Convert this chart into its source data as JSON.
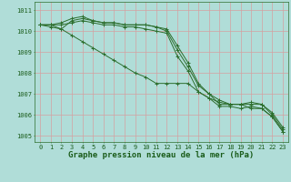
{
  "title": "Graphe pression niveau de la mer (hPa)",
  "bg_color": "#b0ddd8",
  "grid_color": "#d4a0a0",
  "line_color": "#2d6e2d",
  "x_values": [
    0,
    1,
    2,
    3,
    4,
    5,
    6,
    7,
    8,
    9,
    10,
    11,
    12,
    13,
    14,
    15,
    16,
    17,
    18,
    19,
    20,
    21,
    22,
    23
  ],
  "lines": [
    [
      1010.3,
      1010.3,
      1010.1,
      1010.5,
      1010.6,
      1010.5,
      1010.4,
      1010.4,
      1010.3,
      1010.3,
      1010.3,
      1010.2,
      1010.1,
      1009.3,
      1008.5,
      1007.5,
      1007.0,
      1006.5,
      1006.5,
      1006.5,
      1006.5,
      1006.5,
      1006.0,
      1005.3
    ],
    [
      1010.3,
      1010.3,
      1010.4,
      1010.6,
      1010.7,
      1010.5,
      1010.4,
      1010.4,
      1010.3,
      1010.3,
      1010.3,
      1010.2,
      1010.0,
      1009.1,
      1008.3,
      1007.4,
      1007.0,
      1006.7,
      1006.5,
      1006.5,
      1006.6,
      1006.5,
      1006.1,
      1005.4
    ],
    [
      1010.3,
      1010.2,
      1010.1,
      1009.8,
      1009.5,
      1009.2,
      1008.9,
      1008.6,
      1008.3,
      1008.0,
      1007.8,
      1007.5,
      1007.5,
      1007.5,
      1007.5,
      1007.1,
      1006.8,
      1006.6,
      1006.5,
      1006.5,
      1006.3,
      1006.3,
      1005.9,
      1005.2
    ],
    [
      1010.3,
      1010.3,
      1010.3,
      1010.4,
      1010.5,
      1010.4,
      1010.3,
      1010.3,
      1010.2,
      1010.2,
      1010.1,
      1010.0,
      1009.9,
      1008.8,
      1008.1,
      1007.1,
      1006.8,
      1006.4,
      1006.4,
      1006.3,
      1006.4,
      1006.3,
      1005.9,
      1005.2
    ]
  ],
  "ylim": [
    1004.7,
    1011.4
  ],
  "yticks": [
    1005,
    1006,
    1007,
    1008,
    1009,
    1010,
    1011
  ],
  "xticks": [
    0,
    1,
    2,
    3,
    4,
    5,
    6,
    7,
    8,
    9,
    10,
    11,
    12,
    13,
    14,
    15,
    16,
    17,
    18,
    19,
    20,
    21,
    22,
    23
  ],
  "title_fontsize": 6.5,
  "tick_fontsize": 5.0,
  "marker": "+"
}
